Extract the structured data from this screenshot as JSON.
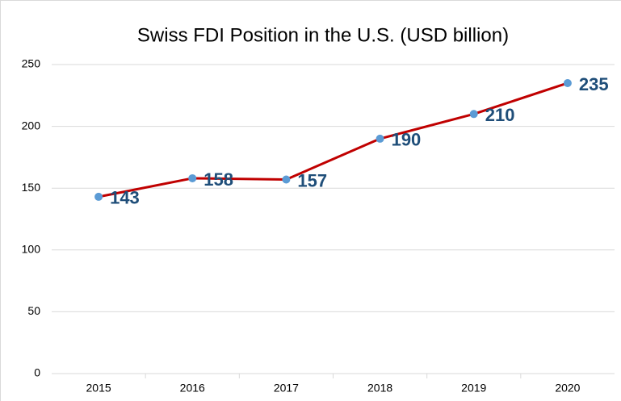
{
  "chart_data": {
    "type": "line",
    "title": "Swiss FDI Position in the U.S. (USD billion)",
    "categories": [
      "2015",
      "2016",
      "2017",
      "2018",
      "2019",
      "2020"
    ],
    "series": [
      {
        "name": "Swiss FDI Position",
        "color": "#c00000",
        "marker_color": "#5b9bd5",
        "values": [
          143,
          158,
          157,
          190,
          210,
          235
        ]
      }
    ],
    "ylim": [
      0,
      250
    ],
    "yticks": [
      0,
      50,
      100,
      150,
      200,
      250
    ],
    "grid": true
  }
}
